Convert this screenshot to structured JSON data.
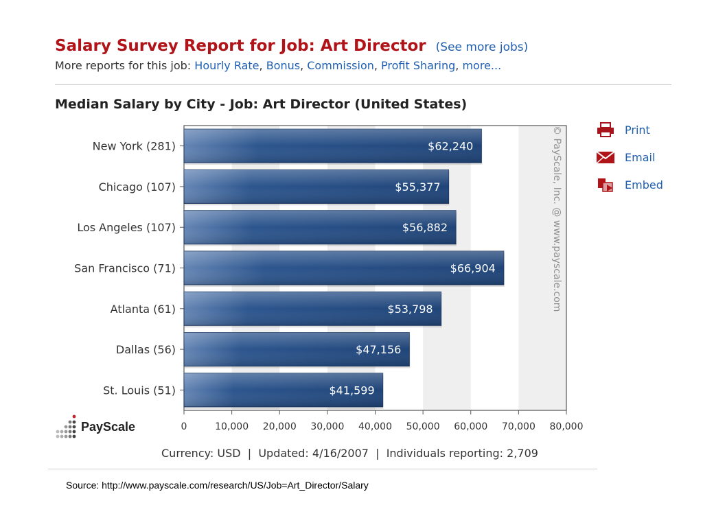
{
  "header": {
    "title": "Salary Survey Report for Job: Art Director",
    "see_more": "(See more jobs)",
    "more_reports_prefix": "More reports for this job:",
    "links": [
      "Hourly Rate",
      "Bonus",
      "Commission",
      "Profit Sharing",
      "more..."
    ]
  },
  "actions": [
    {
      "label": "Print",
      "icon": "printer-icon"
    },
    {
      "label": "Email",
      "icon": "envelope-icon"
    },
    {
      "label": "Embed",
      "icon": "embed-icon"
    }
  ],
  "branding": {
    "logo_text": "PayScale",
    "watermark": "© PayScale, Inc. @ www.payscale.com"
  },
  "footer": {
    "currency": "Currency: USD",
    "updated": "Updated: 4/16/2007",
    "individuals": "Individuals reporting: 2,709",
    "separator": "|"
  },
  "source": "Source: http://www.payscale.com/research/US/Job=Art_Director/Salary",
  "colors": {
    "title": "#b01418",
    "link": "#1f5fb0",
    "bar": "#2c568f",
    "bar_light": "#5f82b3"
  },
  "chart_data": {
    "type": "bar",
    "orientation": "horizontal",
    "title": "Median Salary by City - Job: Art Director (United States)",
    "categories": [
      "New York (281)",
      "Chicago (107)",
      "Los Angeles (107)",
      "San Francisco (71)",
      "Atlanta (61)",
      "Dallas (56)",
      "St. Louis (51)"
    ],
    "values": [
      62240,
      55377,
      56882,
      66904,
      53798,
      47156,
      41599
    ],
    "value_labels": [
      "$62,240",
      "$55,377",
      "$56,882",
      "$66,904",
      "$53,798",
      "$47,156",
      "$41,599"
    ],
    "xlim": [
      0,
      80000
    ],
    "xticks": [
      0,
      10000,
      20000,
      30000,
      40000,
      50000,
      60000,
      70000,
      80000
    ],
    "xtick_labels": [
      "0",
      "10,000",
      "20,000",
      "30,000",
      "40,000",
      "50,000",
      "60,000",
      "70,000",
      "80,000"
    ],
    "grid": "alternating vertical bands",
    "legend": "none"
  }
}
